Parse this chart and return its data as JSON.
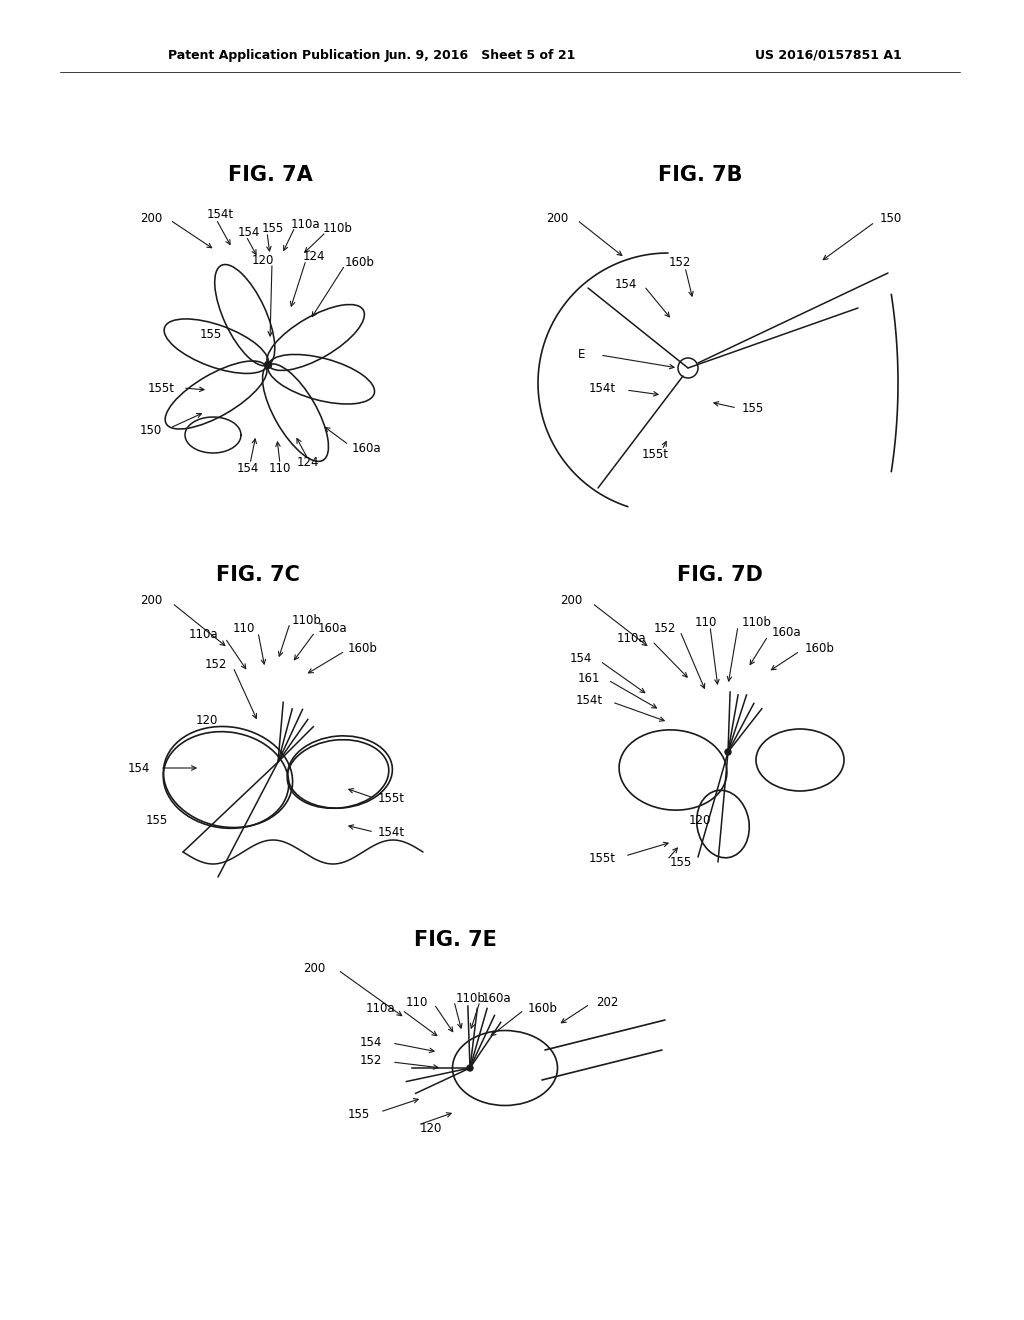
{
  "header_left": "Patent Application Publication",
  "header_mid": "Jun. 9, 2016   Sheet 5 of 21",
  "header_right": "US 2016/0157851 A1",
  "fig7A_title": "FIG. 7A",
  "fig7B_title": "FIG. 7B",
  "fig7C_title": "FIG. 7C",
  "fig7D_title": "FIG. 7D",
  "fig7E_title": "FIG. 7E",
  "bg_color": "#ffffff",
  "line_color": "#1a1a1a",
  "text_color": "#000000"
}
